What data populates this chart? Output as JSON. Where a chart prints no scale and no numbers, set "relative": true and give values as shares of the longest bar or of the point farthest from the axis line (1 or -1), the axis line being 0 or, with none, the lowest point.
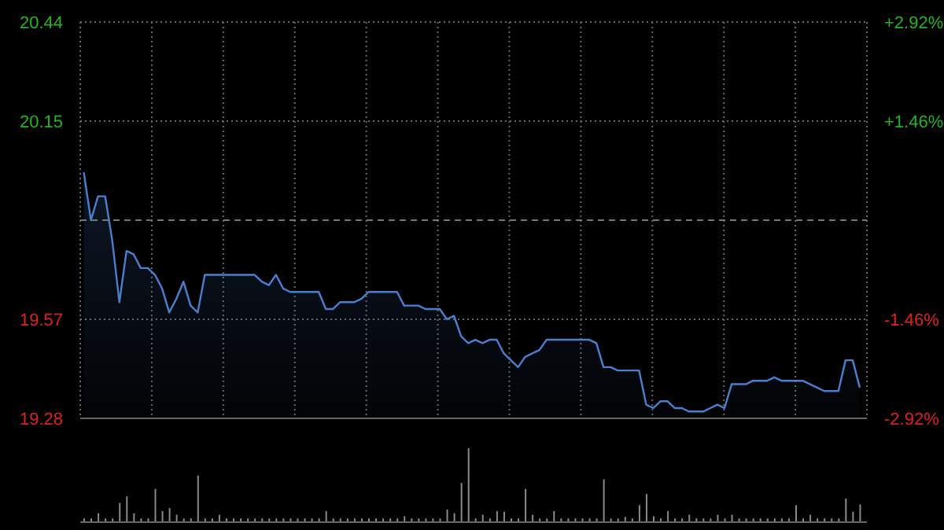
{
  "chart_data": [
    {
      "type": "area",
      "categories": [
        null,
        null,
        null,
        null,
        null,
        null,
        null,
        null,
        null,
        null,
        null,
        null,
        null,
        null,
        null,
        null,
        null,
        null,
        null,
        null,
        null,
        null,
        null,
        null,
        null,
        null,
        null,
        null,
        null,
        null,
        null,
        null,
        null,
        null,
        null,
        null,
        null,
        null,
        null,
        null,
        null,
        null,
        null,
        null,
        null,
        null,
        null,
        null,
        null,
        null,
        null,
        null,
        null,
        null,
        null,
        null,
        null,
        null,
        null,
        null,
        null,
        null,
        null,
        null,
        null,
        null,
        null,
        null,
        null,
        null,
        null,
        null,
        null,
        null,
        null,
        null,
        null,
        null,
        null,
        null,
        null,
        null,
        null,
        null,
        null,
        null,
        null,
        null,
        null,
        null,
        null,
        null,
        null,
        null,
        null,
        null,
        null,
        null,
        null,
        null,
        null,
        null,
        null,
        null,
        null,
        null,
        null,
        null,
        null,
        null
      ],
      "ylim": [
        19.28,
        20.44
      ],
      "yticks": [
        19.28,
        19.57,
        20.15,
        20.44
      ],
      "y2lim": [
        -2.92,
        2.92
      ],
      "y2ticks": [
        {
          "value": -2.92,
          "label": "-2.92%"
        },
        {
          "value": -1.46,
          "label": "-1.46%"
        },
        {
          "value": 1.46,
          "label": "+1.46%"
        },
        {
          "value": 2.92,
          "label": "+2.92%"
        }
      ],
      "grid": true,
      "ref_lines": [
        {
          "axis": "y",
          "value": 19.86,
          "line_style": "dashed",
          "color": "#777777"
        }
      ],
      "series": [
        {
          "color": "#4a7fd0",
          "values": [
            20.0,
            19.86,
            19.93,
            19.93,
            19.8,
            19.62,
            19.77,
            19.76,
            19.72,
            19.72,
            19.7,
            19.66,
            19.59,
            19.63,
            19.68,
            19.61,
            19.59,
            19.7,
            19.7,
            19.7,
            19.7,
            19.7,
            19.7,
            19.7,
            19.7,
            19.68,
            19.67,
            19.7,
            19.66,
            19.65,
            19.65,
            19.65,
            19.65,
            19.65,
            19.6,
            19.6,
            19.62,
            19.62,
            19.62,
            19.63,
            19.65,
            19.65,
            19.65,
            19.65,
            19.65,
            19.61,
            19.61,
            19.61,
            19.6,
            19.6,
            19.6,
            19.57,
            19.58,
            19.52,
            19.5,
            19.51,
            19.5,
            19.51,
            19.51,
            19.47,
            19.45,
            19.43,
            19.46,
            19.47,
            19.48,
            19.51,
            19.51,
            19.51,
            19.51,
            19.51,
            19.51,
            19.51,
            19.5,
            19.43,
            19.43,
            19.42,
            19.42,
            19.42,
            19.42,
            19.32,
            19.31,
            19.33,
            19.33,
            19.31,
            19.31,
            19.3,
            19.3,
            19.3,
            19.31,
            19.32,
            19.31,
            19.38,
            19.38,
            19.38,
            19.39,
            19.39,
            19.39,
            19.4,
            19.39,
            19.39,
            19.39,
            19.39,
            19.38,
            19.37,
            19.36,
            19.36,
            19.36,
            19.45,
            19.45,
            19.37
          ]
        }
      ]
    },
    {
      "type": "bar",
      "relative": true,
      "categories": [
        null,
        null,
        null,
        null,
        null,
        null,
        null,
        null,
        null,
        null,
        null,
        null,
        null,
        null,
        null,
        null,
        null,
        null,
        null,
        null,
        null,
        null,
        null,
        null,
        null,
        null,
        null,
        null,
        null,
        null,
        null,
        null,
        null,
        null,
        null,
        null,
        null,
        null,
        null,
        null,
        null,
        null,
        null,
        null,
        null,
        null,
        null,
        null,
        null,
        null,
        null,
        null,
        null,
        null,
        null,
        null,
        null,
        null,
        null,
        null,
        null,
        null,
        null,
        null,
        null,
        null,
        null,
        null,
        null,
        null,
        null,
        null,
        null,
        null,
        null,
        null,
        null,
        null,
        null,
        null,
        null,
        null,
        null,
        null,
        null,
        null,
        null,
        null,
        null,
        null,
        null,
        null,
        null,
        null,
        null,
        null,
        null,
        null,
        null,
        null,
        null,
        null,
        null,
        null,
        null,
        null,
        null,
        null,
        null,
        null
      ],
      "series": [
        {
          "color": "#8a8a8a",
          "values": [
            0.05,
            0.05,
            0.12,
            0.05,
            0.05,
            0.26,
            0.35,
            0.12,
            0.05,
            0.05,
            0.45,
            0.15,
            0.19,
            0.1,
            0.05,
            0.05,
            0.63,
            0.05,
            0.05,
            0.1,
            0.05,
            0.05,
            0.05,
            0.05,
            0.05,
            0.05,
            0.05,
            0.05,
            0.05,
            0.05,
            0.05,
            0.05,
            0.05,
            0.05,
            0.15,
            0.05,
            0.05,
            0.05,
            0.05,
            0.05,
            0.05,
            0.05,
            0.05,
            0.05,
            0.05,
            0.08,
            0.05,
            0.05,
            0.05,
            0.05,
            0.05,
            0.17,
            0.12,
            0.53,
            1,
            0.05,
            0.1,
            0.05,
            0.15,
            0.14,
            0.05,
            0.05,
            0.45,
            0.1,
            0.05,
            0.05,
            0.15,
            0.05,
            0.05,
            0.05,
            0.05,
            0.05,
            0.05,
            0.58,
            0.05,
            0.05,
            0.07,
            0.05,
            0.23,
            0.38,
            0.08,
            0.05,
            0.15,
            0.05,
            0.05,
            0.1,
            0.05,
            0.05,
            0.05,
            0.1,
            0.05,
            0.1,
            0.05,
            0.05,
            0.05,
            0.05,
            0.05,
            0.05,
            0.05,
            0.05,
            0.23,
            0.05,
            0.1,
            0.05,
            0.05,
            0.05,
            0.05,
            0.32,
            0.14,
            0.24
          ]
        }
      ]
    }
  ]
}
